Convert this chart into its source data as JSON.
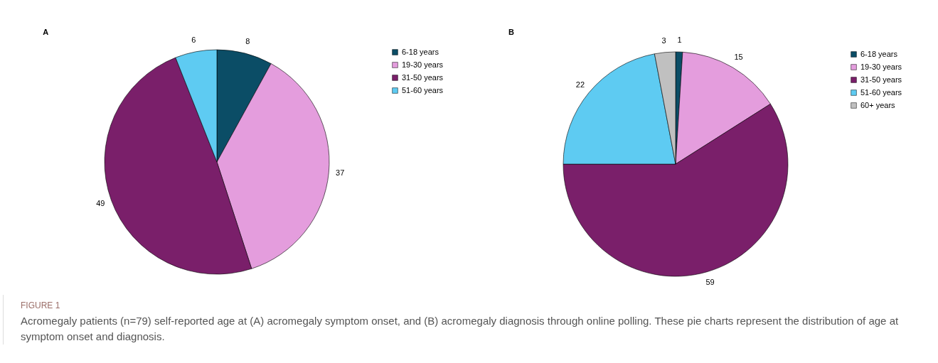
{
  "chart_data": [
    {
      "type": "pie",
      "title": "A",
      "categories": [
        "6-18 years",
        "19-30 years",
        "31-50 years",
        "51-60 years"
      ],
      "values": [
        8,
        37,
        49,
        6
      ],
      "colors": [
        "#0b4d66",
        "#e49ddd",
        "#7a1f6a",
        "#5ecbf2"
      ],
      "data_labels": true,
      "legend": "right"
    },
    {
      "type": "pie",
      "title": "B",
      "categories": [
        "6-18 years",
        "19-30 years",
        "31-50 years",
        "51-60 years",
        "60+ years"
      ],
      "values": [
        1,
        15,
        59,
        22,
        3
      ],
      "colors": [
        "#0b4d66",
        "#e49ddd",
        "#7a1f6a",
        "#5ecbf2",
        "#c0c0c0"
      ],
      "data_labels": true,
      "legend": "right",
      "annotations": [
        "FIGURE 1",
        "Acromegaly patients (n=79) self-reported age at (A) acromegaly symptom onset, and (B) acromegaly diagnosis through online polling. These pie charts represent the distribution of age at symptom onset and diagnosis."
      ]
    }
  ]
}
